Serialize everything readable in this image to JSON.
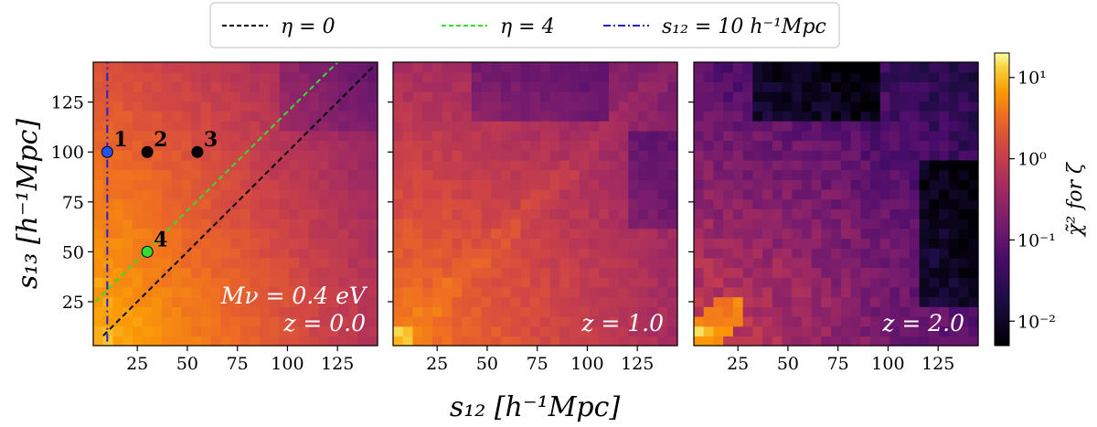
{
  "chart_data": {
    "type": "heatmap",
    "xlabel": "s₁₂ [h⁻¹Mpc]",
    "ylabel": "s₁₃ [h⁻¹Mpc]",
    "xlim": [
      3,
      145
    ],
    "ylim": [
      3,
      145
    ],
    "x_ticks": [
      25,
      50,
      75,
      100,
      125
    ],
    "y_ticks": [
      25,
      50,
      75,
      100,
      125
    ],
    "colorbar": {
      "label": "χ̃² for ζ",
      "scale": "log",
      "range": [
        0.005,
        20
      ],
      "ticks": [
        {
          "value": 10,
          "label": "10¹"
        },
        {
          "value": 1,
          "label": "10⁰"
        },
        {
          "value": 0.1,
          "label": "10⁻¹"
        },
        {
          "value": 0.01,
          "label": "10⁻²"
        }
      ]
    },
    "panels": [
      {
        "id": "z0",
        "label": "z = 0.0",
        "extra_label": "Mν = 0.4 eV",
        "redshift": 0.0
      },
      {
        "id": "z1",
        "label": "z = 1.0",
        "redshift": 1.0
      },
      {
        "id": "z2",
        "label": "z = 2.0",
        "redshift": 2.0
      }
    ],
    "legend": {
      "placement": "top-center",
      "entries": [
        {
          "label": "η = 0",
          "color": "#000000",
          "style": "dashed"
        },
        {
          "label": "η = 4",
          "color": "#33dd33",
          "style": "dashed"
        },
        {
          "label": "s₁₂ = 10 h⁻¹Mpc",
          "color": "#2222cc",
          "style": "dash-dot"
        }
      ]
    },
    "lines": [
      {
        "name": "eta-0",
        "color": "#000000",
        "x": [
          8,
          143
        ],
        "y": [
          8,
          143
        ]
      },
      {
        "name": "eta-4",
        "color": "#33dd33",
        "x": [
          4,
          125
        ],
        "y": [
          25,
          145
        ]
      },
      {
        "name": "s12-10",
        "color": "#2222cc",
        "x": [
          10,
          10
        ],
        "y": [
          5,
          145
        ]
      }
    ],
    "points": [
      {
        "label": "1",
        "x": 10,
        "y": 100,
        "color": "#2255ee"
      },
      {
        "label": "2",
        "x": 30,
        "y": 100,
        "color": "#000000"
      },
      {
        "label": "3",
        "x": 55,
        "y": 100,
        "color": "#000000"
      },
      {
        "label": "4",
        "x": 30,
        "y": 50,
        "color": "#33dd33"
      }
    ]
  }
}
